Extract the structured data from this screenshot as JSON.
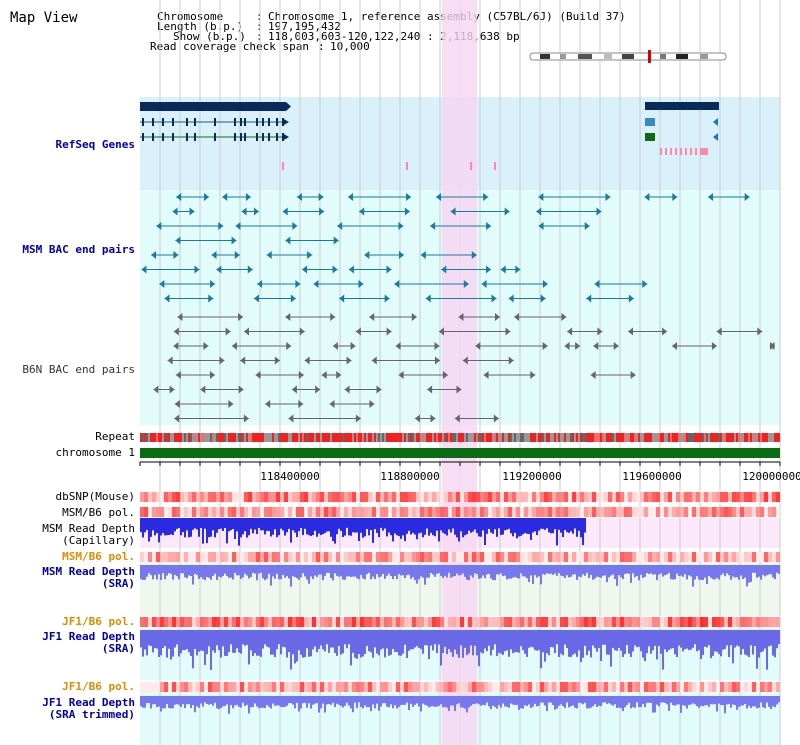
{
  "app": {
    "title": "Map View"
  },
  "header": {
    "rows": [
      {
        "key": "Chromosome",
        "value": "Chromosome 1, reference assembly (C57BL/6J) (Build 37)"
      },
      {
        "key": "Length (b.p.)",
        "value": "197,195,432"
      },
      {
        "key": "Show (b.p.)",
        "value": "118,003,603-120,122,240 : 2,118,638 bp"
      },
      {
        "key": "Read coverage check span",
        "value": "10,000"
      }
    ]
  },
  "tracks": {
    "refseq": "RefSeq Genes",
    "msm_bac": "MSM BAC end pairs",
    "b6n_bac": "B6N BAC end pairs",
    "repeat": "Repeat",
    "chromosome": "chromosome 1",
    "dbsnp": "dbSNP(Mouse)",
    "msm_b6_pol_1": "MSM/B6 pol.",
    "msm_read_depth_cap_1": "MSM Read Depth",
    "msm_read_depth_cap_2": "(Capillary)",
    "msm_b6_pol_2": "MSM/B6 pol.",
    "msm_read_depth_sra_1": "MSM Read Depth",
    "msm_read_depth_sra_2": "(SRA)",
    "jf1_b6_pol_1": "JF1/B6 pol.",
    "jf1_read_depth_sra_1": "JF1 Read Depth",
    "jf1_read_depth_sra_2": "(SRA)",
    "jf1_b6_pol_2": "JF1/B6 pol.",
    "jf1_read_depth_trim_1": "JF1 Read Depth",
    "jf1_read_depth_trim_2": "(SRA trimmed)"
  },
  "axis": {
    "ticks": [
      "118400000",
      "118800000",
      "119200000",
      "119600000",
      "120000000"
    ]
  },
  "colors": {
    "highlight": "#f6d6f2",
    "refseq_bg": "#daf0fb",
    "track_bg": "#e2fbfb",
    "gene_dark": "#0a2a5a",
    "bac_teal": "#1b7aa0",
    "b6n_gray": "#666666",
    "chrom_green": "#0b6b12",
    "depth_blue": "#3333dd",
    "pol_red": "#ee3333"
  }
}
